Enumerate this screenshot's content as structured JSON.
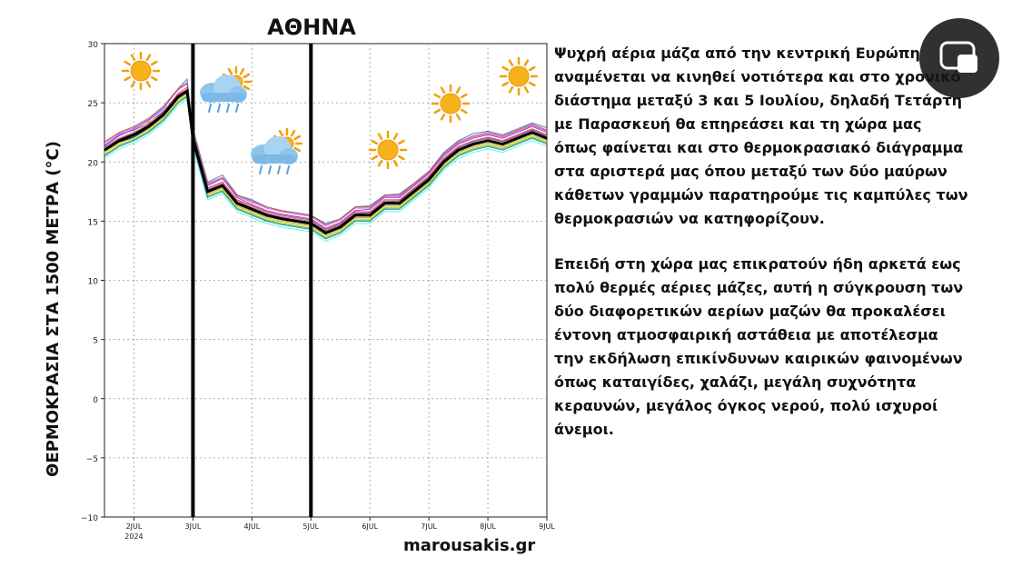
{
  "text": {
    "paragraph1": " Ψυχρή αέρια μάζα από την κεντρική Ευρώπη\nαναμένεται να κινηθεί νοτιότερα και στο χρονικό\nδιάστημα μεταξύ 3 και 5 Ιουλίου, δηλαδή Τετάρτη\nμε Παρασκευή θα επηρεάσει και τη χώρα μας\nόπως φαίνεται και στο θερμοκρασιακό διάγραμμα\n στα αριστερά μας όπου μεταξύ των δύο μαύρων\n κάθετων γραμμών παρατηρούμε τις καμπύλες των\nθερμοκρασιών να κατηφορίζουν.",
    "paragraph2": "Επειδή στη χώρα μας επικρατούν ήδη αρκετά εως\nπολύ θερμές αέριες μάζες, αυτή η σύγκρουση των\nδύο διαφορετικών αερίων μαζών θα προκαλέσει\nέντονη ατμοσφαιρική αστάθεια με αποτέλεσμα\nτην εκδήλωση επικίνδυνων καιρικών φαινομένων\nόπως καταιγίδες, χαλάζι, μεγάλη συχνότητα\nκεραυνών, μεγάλος όγκος νερού, πολύ ισχυροί\nάνεμοι.",
    "credit": "marousakis.gr"
  },
  "overlay": {
    "icon": "picture-in-picture-icon"
  },
  "chart_data": {
    "type": "line",
    "title": "ΑΘΗΝΑ",
    "ylabel": "ΘΕΡΜΟΚΡΑΣΙΑ ΣΤΑ 1500 ΜΕΤΡΑ  (°C)",
    "xlabel": "",
    "xlim": [
      1.5,
      9.0
    ],
    "ylim": [
      -10,
      30
    ],
    "yticks": [
      30,
      25,
      20,
      15,
      10,
      5,
      0,
      -5,
      -10
    ],
    "ytick_labels": [
      "30",
      "25",
      "20",
      "15",
      "10",
      "5",
      "0",
      "−5",
      "−10"
    ],
    "xticks": [
      {
        "x": 2,
        "label": "2JUL",
        "sublabel": "2024"
      },
      {
        "x": 3,
        "label": "3JUL",
        "sublabel": ""
      },
      {
        "x": 4,
        "label": "4JUL",
        "sublabel": ""
      },
      {
        "x": 5,
        "label": "5JUL",
        "sublabel": ""
      },
      {
        "x": 6,
        "label": "6JUL",
        "sublabel": ""
      },
      {
        "x": 7,
        "label": "7JUL",
        "sublabel": ""
      },
      {
        "x": 8,
        "label": "8JUL",
        "sublabel": ""
      },
      {
        "x": 9,
        "label": "9JUL",
        "sublabel": ""
      }
    ],
    "grid": true,
    "vlines": [
      3,
      5
    ],
    "x": [
      1.5,
      1.75,
      2.0,
      2.25,
      2.5,
      2.75,
      2.9,
      3.0,
      3.25,
      3.5,
      3.75,
      4.0,
      4.25,
      4.5,
      4.75,
      5.0,
      5.25,
      5.5,
      5.75,
      6.0,
      6.25,
      6.5,
      6.75,
      7.0,
      7.25,
      7.5,
      7.75,
      8.0,
      8.25,
      8.5,
      8.75,
      9.0
    ],
    "mean": [
      21.0,
      21.8,
      22.3,
      23.0,
      24.0,
      25.5,
      26.0,
      22.0,
      17.5,
      18.0,
      16.5,
      16.0,
      15.5,
      15.2,
      15.0,
      14.8,
      14.0,
      14.5,
      15.5,
      15.5,
      16.5,
      16.5,
      17.5,
      18.5,
      20.0,
      21.0,
      21.5,
      21.8,
      21.5,
      22.0,
      22.5,
      22.0
    ],
    "series": [
      {
        "color": "#e6194b",
        "values": [
          21.2,
          22.0,
          22.5,
          23.2,
          24.2,
          25.8,
          26.3,
          22.3,
          17.8,
          18.3,
          16.8,
          16.3,
          15.8,
          15.5,
          15.3,
          15.1,
          14.3,
          14.8,
          15.8,
          15.8,
          16.8,
          16.8,
          17.8,
          18.8,
          20.3,
          21.3,
          21.8,
          22.1,
          21.8,
          22.3,
          22.8,
          22.3
        ]
      },
      {
        "color": "#3cb44b",
        "values": [
          20.6,
          21.4,
          21.9,
          22.6,
          23.6,
          25.1,
          25.6,
          21.6,
          17.1,
          17.6,
          16.1,
          15.6,
          15.1,
          14.8,
          14.6,
          14.4,
          13.6,
          14.1,
          15.1,
          15.1,
          16.1,
          16.1,
          17.1,
          18.1,
          19.6,
          20.6,
          21.1,
          21.4,
          21.1,
          21.6,
          22.1,
          21.6
        ]
      },
      {
        "color": "#4363d8",
        "values": [
          21.3,
          22.2,
          22.8,
          23.5,
          24.5,
          26.2,
          27.0,
          22.8,
          18.3,
          18.9,
          17.2,
          16.8,
          16.2,
          15.9,
          15.7,
          15.5,
          14.8,
          15.2,
          16.2,
          16.3,
          17.2,
          17.3,
          18.2,
          19.2,
          20.8,
          21.8,
          22.4,
          22.6,
          22.3,
          22.8,
          23.3,
          22.9
        ]
      },
      {
        "color": "#f58231",
        "values": [
          20.9,
          21.6,
          22.1,
          22.8,
          23.8,
          25.3,
          25.8,
          21.8,
          17.3,
          17.8,
          16.3,
          15.8,
          15.3,
          15.0,
          14.8,
          14.6,
          13.8,
          14.3,
          15.3,
          15.3,
          16.3,
          16.3,
          17.3,
          18.3,
          19.8,
          20.8,
          21.3,
          21.6,
          21.3,
          21.8,
          22.3,
          21.8
        ]
      },
      {
        "color": "#911eb4",
        "values": [
          21.4,
          22.3,
          22.7,
          23.3,
          24.3,
          25.7,
          26.1,
          22.5,
          18.0,
          18.6,
          17.0,
          16.4,
          15.9,
          15.6,
          15.4,
          15.2,
          14.4,
          14.9,
          15.9,
          16.0,
          17.0,
          17.0,
          18.0,
          19.0,
          20.5,
          21.5,
          22.0,
          22.3,
          22.0,
          22.5,
          23.0,
          22.5
        ]
      },
      {
        "color": "#46f0f0",
        "values": [
          20.3,
          21.1,
          21.6,
          22.3,
          23.3,
          24.8,
          25.3,
          21.3,
          16.8,
          17.3,
          15.8,
          15.3,
          14.8,
          14.5,
          14.3,
          14.1,
          13.3,
          13.8,
          14.8,
          14.8,
          15.8,
          15.8,
          16.8,
          17.8,
          19.3,
          20.3,
          20.8,
          21.1,
          20.8,
          21.3,
          21.8,
          21.3
        ]
      },
      {
        "color": "#f032e6",
        "values": [
          21.6,
          22.4,
          22.9,
          23.6,
          24.6,
          26.1,
          26.6,
          22.6,
          18.1,
          18.6,
          17.1,
          16.6,
          16.1,
          15.8,
          15.6,
          15.4,
          14.6,
          15.1,
          16.1,
          16.1,
          17.1,
          17.1,
          18.1,
          19.1,
          20.6,
          21.6,
          22.1,
          22.4,
          22.1,
          22.6,
          23.1,
          22.6
        ]
      },
      {
        "color": "#bcf60c",
        "values": [
          20.8,
          21.5,
          22.0,
          22.7,
          23.7,
          25.2,
          25.7,
          21.7,
          17.2,
          17.7,
          16.2,
          15.7,
          15.2,
          14.9,
          14.7,
          14.5,
          13.7,
          14.2,
          15.2,
          15.2,
          16.2,
          16.2,
          17.2,
          18.2,
          19.7,
          20.7,
          21.2,
          21.5,
          21.2,
          21.7,
          22.2,
          21.7
        ]
      },
      {
        "color": "#fabebe",
        "values": [
          21.1,
          21.9,
          22.4,
          23.1,
          24.1,
          25.6,
          26.1,
          22.1,
          17.6,
          18.1,
          16.6,
          16.1,
          15.6,
          15.3,
          15.1,
          14.9,
          14.1,
          14.6,
          15.6,
          15.6,
          16.6,
          16.6,
          17.6,
          18.6,
          20.1,
          21.1,
          21.6,
          21.9,
          21.6,
          22.1,
          22.6,
          22.1
        ]
      },
      {
        "color": "#008080",
        "values": [
          20.5,
          21.3,
          21.8,
          22.5,
          23.5,
          25.0,
          25.5,
          21.5,
          17.0,
          17.5,
          16.0,
          15.5,
          15.0,
          14.7,
          14.5,
          14.3,
          13.5,
          14.0,
          15.0,
          15.0,
          16.0,
          16.0,
          17.0,
          18.0,
          19.5,
          20.5,
          21.0,
          21.3,
          21.0,
          21.5,
          22.0,
          21.5
        ]
      },
      {
        "color": "#9a6324",
        "values": [
          21.7,
          22.5,
          23.0,
          23.7,
          24.7,
          26.2,
          26.7,
          22.7,
          18.2,
          18.7,
          17.2,
          16.7,
          16.2,
          15.9,
          15.7,
          15.5,
          14.7,
          15.2,
          16.2,
          16.2,
          17.2,
          17.2,
          18.2,
          19.2,
          20.7,
          21.7,
          22.2,
          22.5,
          22.2,
          22.7,
          23.2,
          22.7
        ]
      },
      {
        "color": "#ffe119",
        "values": [
          20.7,
          21.6,
          22.4,
          23.4,
          24.0,
          25.3,
          25.9,
          21.9,
          17.5,
          17.9,
          16.4,
          15.9,
          15.5,
          15.2,
          15.0,
          14.8,
          14.1,
          14.6,
          15.4,
          15.6,
          16.6,
          16.4,
          17.4,
          18.6,
          20.1,
          21.0,
          21.5,
          21.9,
          21.4,
          22.1,
          22.4,
          22.1
        ]
      },
      {
        "color": "#000075",
        "values": [
          21.0,
          21.7,
          22.1,
          22.9,
          23.9,
          25.4,
          25.9,
          22.0,
          17.6,
          18.1,
          16.6,
          16.1,
          15.6,
          15.3,
          15.1,
          14.9,
          14.2,
          14.7,
          15.6,
          15.7,
          16.6,
          16.7,
          17.7,
          18.7,
          20.2,
          21.2,
          21.7,
          22.0,
          21.7,
          22.2,
          22.7,
          22.2
        ]
      },
      {
        "color": "#808080",
        "values": [
          21.2,
          21.9,
          22.5,
          23.1,
          24.2,
          25.6,
          26.1,
          22.2,
          17.7,
          18.2,
          16.7,
          16.2,
          15.7,
          15.4,
          15.2,
          15.0,
          14.2,
          14.7,
          15.7,
          15.7,
          16.7,
          16.7,
          17.7,
          18.7,
          20.2,
          21.2,
          21.7,
          22.0,
          21.7,
          22.2,
          22.7,
          22.2
        ]
      }
    ]
  }
}
